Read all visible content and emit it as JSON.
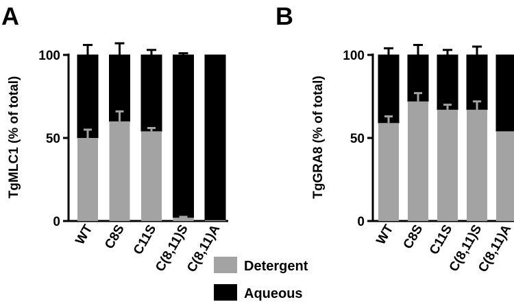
{
  "legend": {
    "items": [
      {
        "name": "Detergent",
        "color": "#a3a3a3"
      },
      {
        "name": "Aqueous",
        "color": "#000000"
      }
    ]
  },
  "chart_data": [
    {
      "type": "bar",
      "stacked": true,
      "panel_label": "A",
      "ylabel": "TgMLC1 (% of total)",
      "xlabel": "",
      "ylim": [
        0,
        100
      ],
      "yticks": [
        0,
        50,
        100
      ],
      "categories": [
        "WT",
        "C8S",
        "C11S",
        "C(8,11)S",
        "C(8,11)A"
      ],
      "series": [
        {
          "name": "Detergent",
          "color": "#a3a3a3",
          "values": [
            50,
            60,
            54,
            2,
            0.5
          ],
          "err": [
            5,
            6,
            2,
            0.5,
            0
          ]
        },
        {
          "name": "Aqueous",
          "color": "#000000",
          "values": [
            50,
            40,
            46,
            98,
            99.5
          ],
          "err": [
            6,
            7,
            3,
            1,
            0
          ]
        }
      ]
    },
    {
      "type": "bar",
      "stacked": true,
      "panel_label": "B",
      "ylabel": "TgGRA8 (% of total)",
      "xlabel": "",
      "ylim": [
        0,
        100
      ],
      "yticks": [
        0,
        50,
        100
      ],
      "categories": [
        "WT",
        "C8S",
        "C11S",
        "C(8,11)S",
        "C(8,11)A"
      ],
      "series": [
        {
          "name": "Detergent",
          "color": "#a3a3a3",
          "values": [
            59,
            72,
            67,
            67,
            54
          ],
          "err": [
            4,
            5,
            3,
            5,
            0
          ]
        },
        {
          "name": "Aqueous",
          "color": "#000000",
          "values": [
            41,
            28,
            33,
            33,
            46
          ],
          "err": [
            4,
            6,
            3,
            5,
            0
          ]
        }
      ]
    }
  ]
}
